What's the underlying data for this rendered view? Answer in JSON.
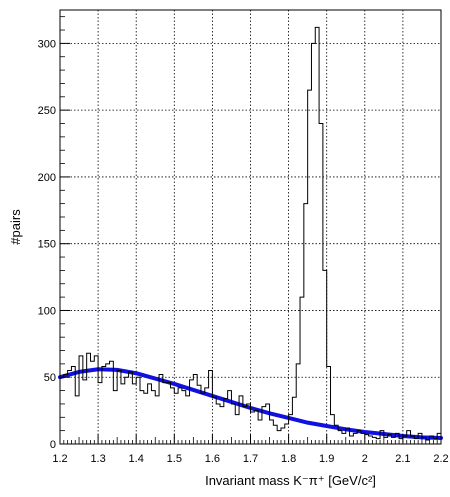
{
  "chart_data": {
    "type": "histogram",
    "title": "",
    "xlabel": "Invariant mass K⁻π⁺ [GeV/c²]",
    "ylabel": "#pairs",
    "xlim": [
      1.2,
      2.2
    ],
    "ylim": [
      0,
      325
    ],
    "grid": true,
    "x_ticks": [
      "1.2",
      "1.3",
      "1.4",
      "1.5",
      "1.6",
      "1.7",
      "1.8",
      "1.9",
      "2",
      "2.1",
      "2.2"
    ],
    "y_ticks": [
      "0",
      "50",
      "100",
      "150",
      "200",
      "250",
      "300"
    ],
    "bin_width": 0.01,
    "bin_start": 1.2,
    "histogram_values": [
      50,
      52,
      55,
      58,
      36,
      66,
      48,
      68,
      62,
      66,
      46,
      58,
      60,
      62,
      40,
      55,
      45,
      50,
      54,
      45,
      50,
      40,
      38,
      45,
      40,
      36,
      52,
      46,
      46,
      42,
      38,
      42,
      40,
      36,
      48,
      52,
      44,
      38,
      42,
      55,
      35,
      30,
      28,
      34,
      40,
      30,
      22,
      36,
      28,
      30,
      24,
      25,
      18,
      28,
      30,
      18,
      14,
      10,
      12,
      15,
      22,
      35,
      60,
      110,
      180,
      265,
      300,
      312,
      240,
      130,
      58,
      22,
      14,
      10,
      8,
      12,
      6,
      8,
      10,
      8,
      7,
      6,
      5,
      4,
      10,
      5,
      7,
      5,
      8,
      4,
      6,
      10,
      6,
      4,
      8,
      5,
      3,
      6,
      4,
      8
    ],
    "fit_curve": {
      "x": [
        1.2,
        1.25,
        1.3,
        1.35,
        1.4,
        1.45,
        1.5,
        1.55,
        1.6,
        1.65,
        1.7,
        1.75,
        1.8,
        1.85,
        1.9,
        1.95,
        2.0,
        2.05,
        2.1,
        2.15,
        2.2
      ],
      "y": [
        50,
        54,
        56,
        55.5,
        53,
        49,
        45,
        40.5,
        36,
        31.5,
        27,
        23,
        19.5,
        16,
        13.5,
        11,
        9,
        7.5,
        6,
        5,
        4.5
      ],
      "color": "#1010e0"
    },
    "histogram_color": "#000000"
  }
}
